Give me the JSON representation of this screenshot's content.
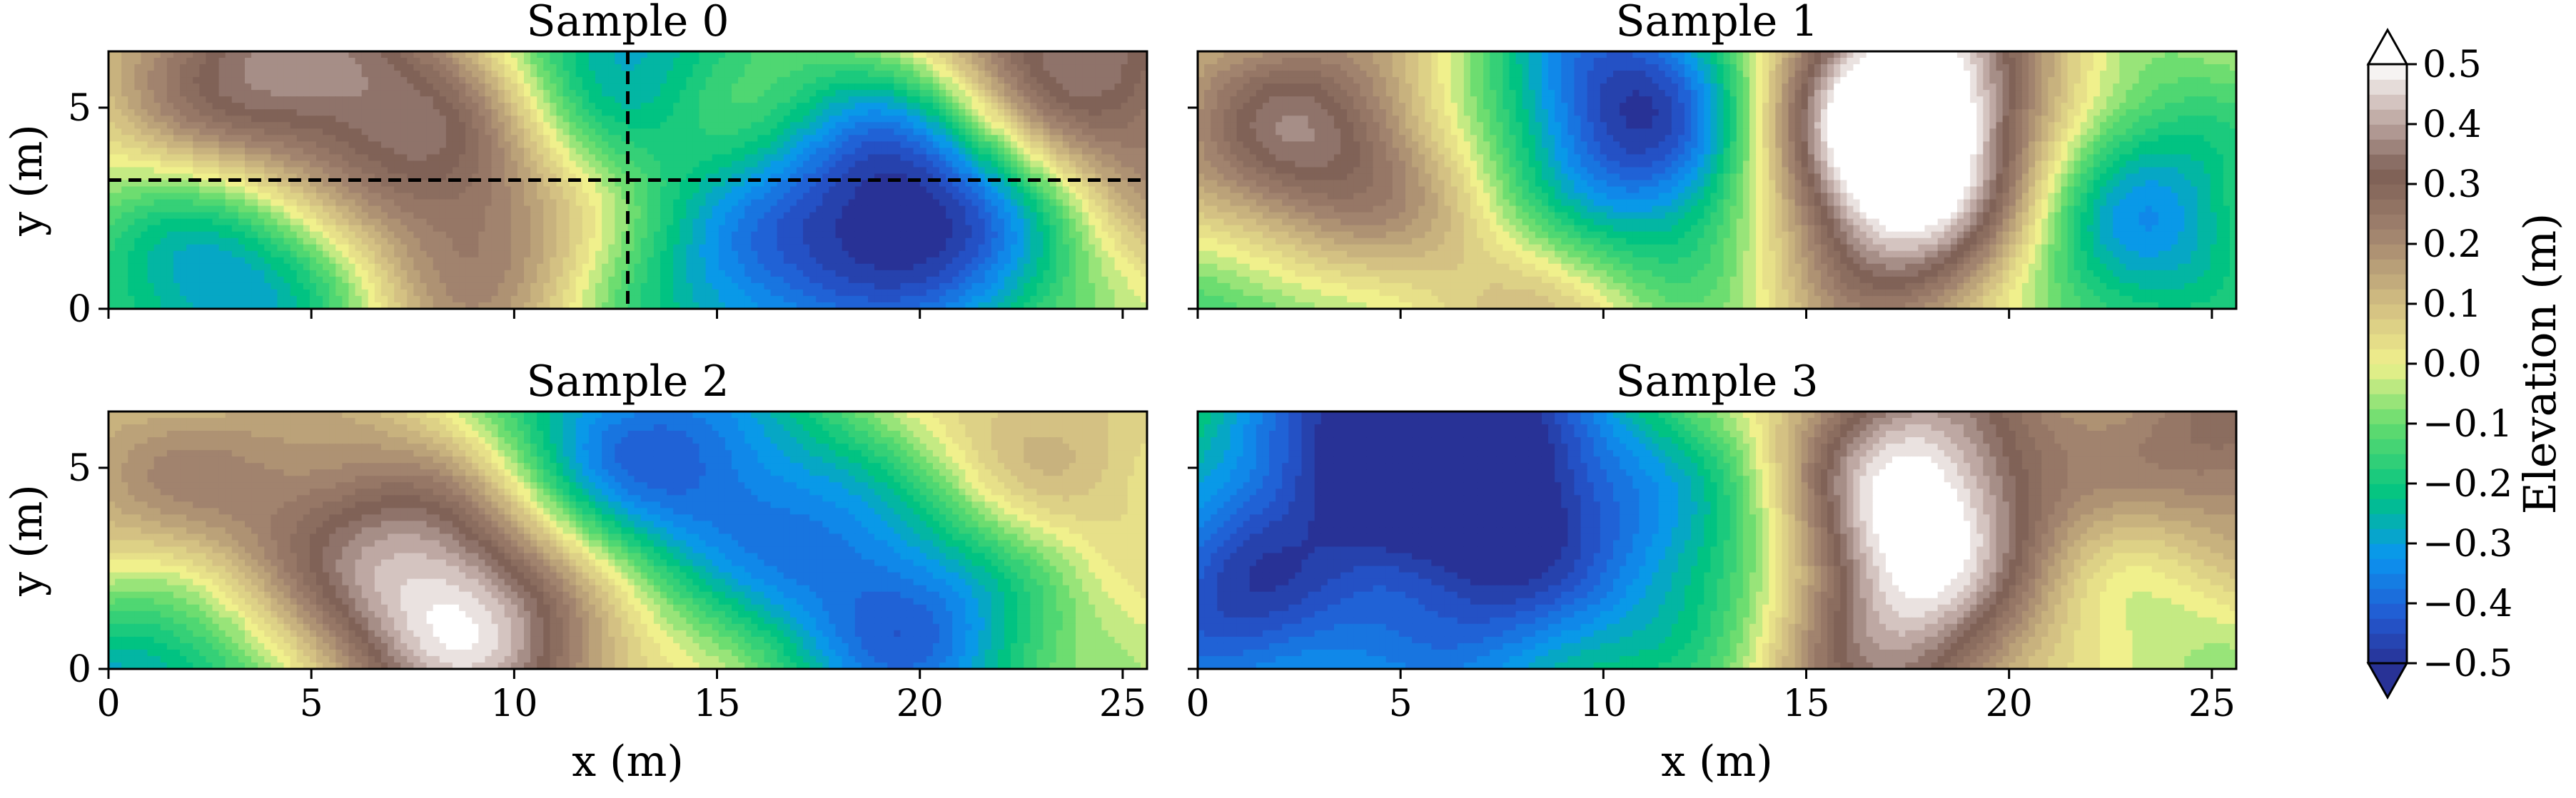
{
  "chart_data": {
    "type": "heatmap",
    "colormap": "terrain",
    "colorbar": {
      "label": "Elevation (m)",
      "vmin": -0.5,
      "vmax": 0.5,
      "extend": "both",
      "ticks": [
        0.5,
        0.4,
        0.3,
        0.2,
        0.1,
        0.0,
        -0.1,
        -0.2,
        -0.3,
        -0.4,
        -0.5
      ],
      "tick_labels": [
        "0.5",
        "0.4",
        "0.3",
        "0.2",
        "0.1",
        "0.0",
        "−0.1",
        "−0.2",
        "−0.3",
        "−0.4",
        "−0.5"
      ]
    },
    "xlim": [
      0,
      25.6
    ],
    "ylim": [
      0,
      6.4
    ],
    "xticks": [
      0,
      5,
      10,
      15,
      20,
      25
    ],
    "xtick_labels": [
      "0",
      "5",
      "10",
      "15",
      "20",
      "25"
    ],
    "yticks": [
      0,
      5
    ],
    "ytick_labels": [
      "0",
      "5"
    ],
    "xlabel": "x (m)",
    "ylabel": "y (m)",
    "panels": [
      {
        "title": "Sample 0",
        "crosshair": {
          "x": 12.8,
          "y": 3.2
        },
        "features": [
          {
            "x": 3.5,
            "y": 4.8,
            "value": 0.5
          },
          {
            "x": 8.5,
            "y": 5.2,
            "value": 0.25
          },
          {
            "x": 9.0,
            "y": 1.5,
            "value": 0.22
          },
          {
            "x": 15.2,
            "y": 4.6,
            "value": 0.25
          },
          {
            "x": 22.5,
            "y": 5.9,
            "value": 0.5
          },
          {
            "x": 25.5,
            "y": 3.3,
            "value": 0.2
          },
          {
            "x": 19.5,
            "y": 3.8,
            "value": -0.45
          },
          {
            "x": 22.0,
            "y": 2.3,
            "value": -0.35
          },
          {
            "x": 15.5,
            "y": 1.0,
            "value": -0.35
          },
          {
            "x": 12.5,
            "y": 6.4,
            "value": -0.45
          },
          {
            "x": 2.5,
            "y": 1.6,
            "value": -0.3
          },
          {
            "x": 4.0,
            "y": 1.8,
            "value": -0.22
          }
        ]
      },
      {
        "title": "Sample 1",
        "features": [
          {
            "x": 2.5,
            "y": 3.5,
            "value": 0.45
          },
          {
            "x": 17.5,
            "y": 5.0,
            "value": 0.55
          },
          {
            "x": 17.0,
            "y": 2.5,
            "value": 0.3
          },
          {
            "x": 10.5,
            "y": 5.2,
            "value": -0.45
          },
          {
            "x": 23.0,
            "y": 2.3,
            "value": -0.35
          },
          {
            "x": 1.5,
            "y": 0.2,
            "value": -0.3
          },
          {
            "x": 9.0,
            "y": 0.0,
            "value": 0.15
          },
          {
            "x": 12.5,
            "y": 2.2,
            "value": -0.2
          }
        ]
      },
      {
        "title": "Sample 2",
        "features": [
          {
            "x": 9.0,
            "y": 1.6,
            "value": 0.5
          },
          {
            "x": 1.0,
            "y": 3.5,
            "value": 0.25
          },
          {
            "x": 5.5,
            "y": 3.5,
            "value": 0.15
          },
          {
            "x": 22.0,
            "y": 4.5,
            "value": 0.2
          },
          {
            "x": 12.0,
            "y": 5.2,
            "value": -0.35
          },
          {
            "x": 15.5,
            "y": 4.0,
            "value": -0.3
          },
          {
            "x": 20.0,
            "y": 1.5,
            "value": -0.45
          },
          {
            "x": 1.0,
            "y": 0.0,
            "value": -0.4
          },
          {
            "x": 14.5,
            "y": 2.0,
            "value": 0.12
          }
        ]
      },
      {
        "title": "Sample 3",
        "features": [
          {
            "x": 17.5,
            "y": 4.5,
            "value": 0.5
          },
          {
            "x": 16.5,
            "y": 0.8,
            "value": 0.35
          },
          {
            "x": 25.5,
            "y": 5.8,
            "value": 0.3
          },
          {
            "x": 7.5,
            "y": 5.2,
            "value": -0.45
          },
          {
            "x": 3.5,
            "y": 6.2,
            "value": -0.35
          },
          {
            "x": 13.5,
            "y": 2.6,
            "value": -0.35
          },
          {
            "x": 0.5,
            "y": 1.2,
            "value": -0.4
          },
          {
            "x": 7.0,
            "y": 0.3,
            "value": -0.25
          },
          {
            "x": 23.5,
            "y": 1.5,
            "value": -0.1
          }
        ]
      }
    ]
  }
}
